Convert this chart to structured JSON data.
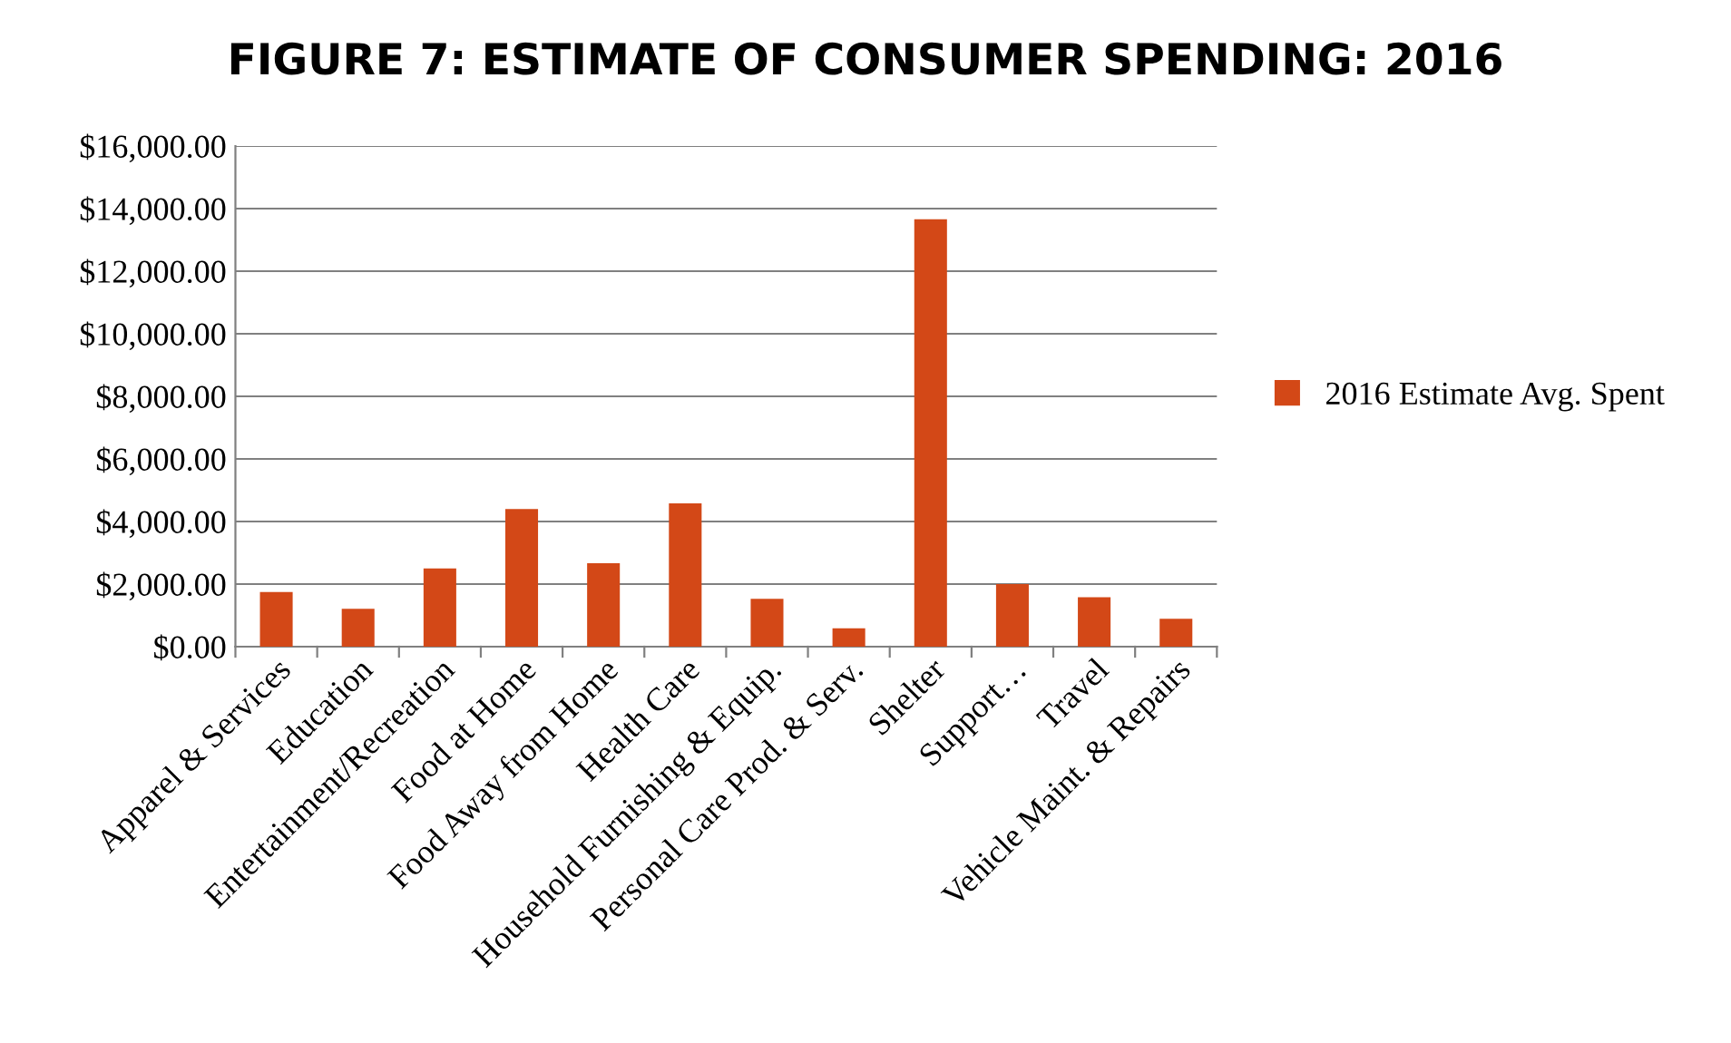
{
  "chart_data": {
    "type": "bar",
    "title": "FIGURE 7: ESTIMATE OF CONSUMER SPENDING: 2016",
    "categories": [
      "Apparel & Services",
      "Education",
      "Entertainment/Recreation",
      "Food at Home",
      "Food Away from Home",
      "Health Care",
      "Household Furnishing & Equip.",
      "Personal Care Prod. & Serv.",
      "Shelter",
      "Support…",
      "Travel",
      "Vehicle Maint. & Repairs"
    ],
    "series": [
      {
        "name": "2016 Estimate Avg. Spent",
        "color": "#d34817",
        "values": [
          1750,
          1210,
          2500,
          4400,
          2670,
          4580,
          1530,
          590,
          13660,
          2000,
          1580,
          890
        ]
      }
    ],
    "ylim": [
      0,
      16000
    ],
    "yticks": [
      {
        "value": 0,
        "label": "$0.00"
      },
      {
        "value": 2000,
        "label": "$2,000.00"
      },
      {
        "value": 4000,
        "label": "$4,000.00"
      },
      {
        "value": 6000,
        "label": "$6,000.00"
      },
      {
        "value": 8000,
        "label": "$8,000.00"
      },
      {
        "value": 10000,
        "label": "$10,000.00"
      },
      {
        "value": 12000,
        "label": "$12,000.00"
      },
      {
        "value": 14000,
        "label": "$14,000.00"
      },
      {
        "value": 16000,
        "label": "$16,000.00"
      }
    ],
    "grid": "y",
    "legend": "right"
  }
}
